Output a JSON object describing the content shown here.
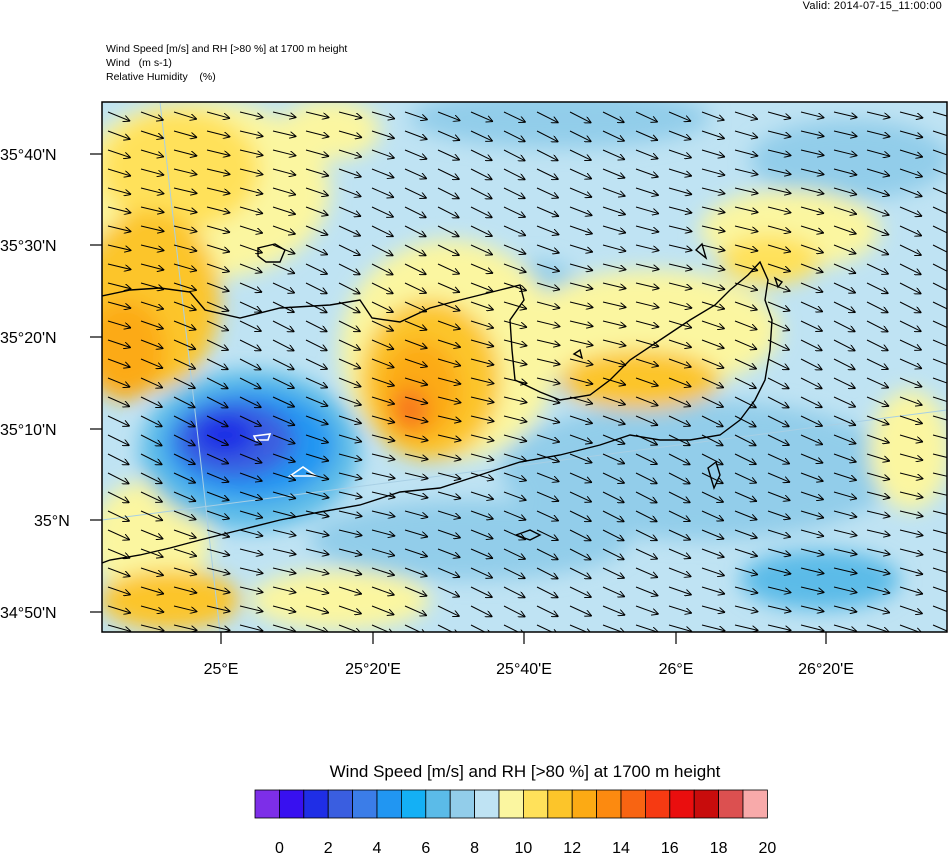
{
  "valid_time": "Valid: 2014-07-15_11:00:00",
  "header": {
    "line1": "Wind Speed [m/s] and RH [>80 %] at 1700 m height",
    "line2": "Wind   (m s-1)",
    "line3": "Relative Humidity    (%)"
  },
  "map": {
    "lat_labels": [
      "35°40'N",
      "35°30'N",
      "35°20'N",
      "35°10'N",
      "35°N",
      "34°50'N"
    ],
    "lon_labels": [
      "25°E",
      "25°20'E",
      "25°40'E",
      "26°E",
      "26°20'E"
    ],
    "wind_direction": "west-northwest",
    "contours": "wind speed shading, humidity contours"
  },
  "colorbar": {
    "title": "Wind Speed [m/s] and RH [>80 %] at 1700 m height",
    "tick_labels": [
      "0",
      "2",
      "4",
      "6",
      "8",
      "10",
      "12",
      "14",
      "16",
      "18",
      "20"
    ],
    "colors": [
      "#7d2ee8",
      "#3810f0",
      "#1f2ee6",
      "#3a5ee0",
      "#3b7de8",
      "#2196f2",
      "#14b0f5",
      "#5bbbe8",
      "#92cdea",
      "#bfe3f3",
      "#fbf6a0",
      "#ffe15a",
      "#fcc52a",
      "#fcaa14",
      "#fc8a10",
      "#f86412",
      "#f63a12",
      "#ea0e0e",
      "#c80c0c",
      "#dc5050",
      "#f8aaaa"
    ]
  }
}
